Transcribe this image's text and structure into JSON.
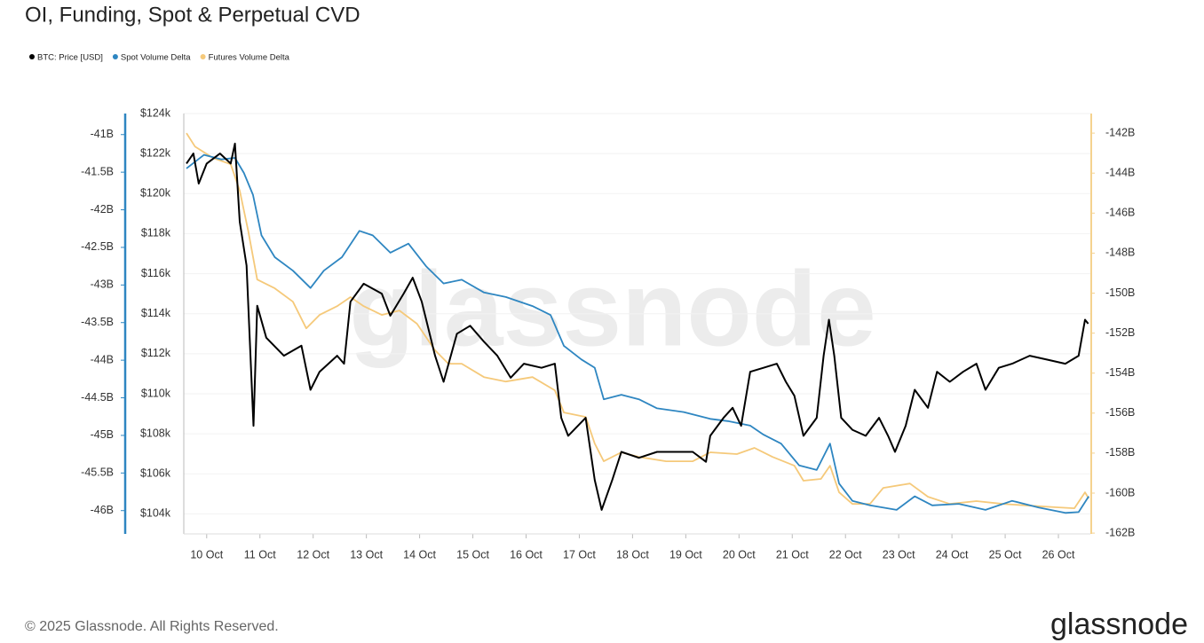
{
  "chart_data": {
    "type": "line",
    "title": "OI, Funding, Spot & Perpetual CVD",
    "watermark": "glassnode",
    "footer": "© 2025 Glassnode. All Rights Reserved.",
    "logo": "glassnode",
    "grid": true,
    "xlim": [
      9.57,
      26.6
    ],
    "xticks": [
      {
        "value": 10,
        "label": "10 Oct"
      },
      {
        "value": 11,
        "label": "11 Oct"
      },
      {
        "value": 12,
        "label": "12 Oct"
      },
      {
        "value": 13,
        "label": "13 Oct"
      },
      {
        "value": 14,
        "label": "14 Oct"
      },
      {
        "value": 15,
        "label": "15 Oct"
      },
      {
        "value": 16,
        "label": "16 Oct"
      },
      {
        "value": 17,
        "label": "17 Oct"
      },
      {
        "value": 18,
        "label": "18 Oct"
      },
      {
        "value": 19,
        "label": "19 Oct"
      },
      {
        "value": 20,
        "label": "20 Oct"
      },
      {
        "value": 21,
        "label": "21 Oct"
      },
      {
        "value": 22,
        "label": "22 Oct"
      },
      {
        "value": 23,
        "label": "23 Oct"
      },
      {
        "value": 24,
        "label": "24 Oct"
      },
      {
        "value": 25,
        "label": "25 Oct"
      },
      {
        "value": 26,
        "label": "26 Oct"
      }
    ],
    "ylim": [
      103000,
      124000
    ],
    "yticks": [
      {
        "value": 104000,
        "label": "$104k"
      },
      {
        "value": 106000,
        "label": "$106k"
      },
      {
        "value": 108000,
        "label": "$108k"
      },
      {
        "value": 110000,
        "label": "$110k"
      },
      {
        "value": 112000,
        "label": "$112k"
      },
      {
        "value": 114000,
        "label": "$114k"
      },
      {
        "value": 116000,
        "label": "$116k"
      },
      {
        "value": 118000,
        "label": "$118k"
      },
      {
        "value": 120000,
        "label": "$120k"
      },
      {
        "value": 122000,
        "label": "$122k"
      },
      {
        "value": 124000,
        "label": "$124k"
      }
    ],
    "y2lim": [
      -162.04,
      -141.02
    ],
    "y2ticks": [
      {
        "value": -142,
        "label": "-142B"
      },
      {
        "value": -144,
        "label": "-144B"
      },
      {
        "value": -146,
        "label": "-146B"
      },
      {
        "value": -148,
        "label": "-148B"
      },
      {
        "value": -150,
        "label": "-150B"
      },
      {
        "value": -152,
        "label": "-152B"
      },
      {
        "value": -154,
        "label": "-154B"
      },
      {
        "value": -156,
        "label": "-156B"
      },
      {
        "value": -158,
        "label": "-158B"
      },
      {
        "value": -160,
        "label": "-160B"
      },
      {
        "value": -162,
        "label": "-162B"
      }
    ],
    "y3lim": [
      -46.31,
      -40.72
    ],
    "y3ticks": [
      {
        "value": -41,
        "label": "-41B"
      },
      {
        "value": -41.5,
        "label": "-41.5B"
      },
      {
        "value": -42,
        "label": "-42B"
      },
      {
        "value": -42.5,
        "label": "-42.5B"
      },
      {
        "value": -43,
        "label": "-43B"
      },
      {
        "value": -43.5,
        "label": "-43.5B"
      },
      {
        "value": -44,
        "label": "-44B"
      },
      {
        "value": -44.5,
        "label": "-44.5B"
      },
      {
        "value": -45,
        "label": "-45B"
      },
      {
        "value": -45.5,
        "label": "-45.5B"
      },
      {
        "value": -46,
        "label": "-46B"
      }
    ],
    "y2color": "#f5d28f",
    "y3color": "#2e86c1",
    "series": [
      {
        "name": "BTC: Price [USD]",
        "color": "#000000",
        "axis": "y",
        "x": [
          9.62,
          9.75,
          9.85,
          10.0,
          10.25,
          10.45,
          10.53,
          10.62,
          10.75,
          10.88,
          10.95,
          11.12,
          11.45,
          11.78,
          11.95,
          12.12,
          12.45,
          12.58,
          12.7,
          12.95,
          13.29,
          13.45,
          13.7,
          13.87,
          14.04,
          14.29,
          14.45,
          14.7,
          14.95,
          15.21,
          15.46,
          15.71,
          15.96,
          16.29,
          16.54,
          16.66,
          16.79,
          17.12,
          17.29,
          17.42,
          17.62,
          17.79,
          18.12,
          18.46,
          18.79,
          19.13,
          19.38,
          19.46,
          19.71,
          19.88,
          20.04,
          20.21,
          20.46,
          20.71,
          20.88,
          21.04,
          21.21,
          21.46,
          21.59,
          21.69,
          21.79,
          21.92,
          22.13,
          22.38,
          22.63,
          22.8,
          22.93,
          23.13,
          23.3,
          23.55,
          23.72,
          23.96,
          24.21,
          24.46,
          24.63,
          24.88,
          25.13,
          25.46,
          25.8,
          26.13,
          26.38,
          26.5,
          26.56
        ],
        "values": [
          121500,
          122000,
          120500,
          121500,
          122000,
          121500,
          122500,
          118600,
          116400,
          108400,
          114400,
          112800,
          111900,
          112400,
          110200,
          111100,
          111900,
          111500,
          114600,
          115500,
          115000,
          113900,
          115000,
          115800,
          114600,
          111900,
          110600,
          113000,
          113400,
          112600,
          111900,
          110800,
          111500,
          111300,
          111500,
          108800,
          107900,
          108800,
          105700,
          104200,
          105700,
          107100,
          106800,
          107100,
          107100,
          107100,
          106600,
          107900,
          108800,
          109300,
          108400,
          111100,
          111300,
          111500,
          110600,
          109900,
          107900,
          108800,
          111900,
          113700,
          111900,
          108800,
          108200,
          107900,
          108800,
          107900,
          107100,
          108400,
          110200,
          109300,
          111100,
          110600,
          111100,
          111500,
          110200,
          111300,
          111500,
          111900,
          111700,
          111500,
          111900,
          113700,
          113500
        ]
      },
      {
        "name": "Spot Volume Delta",
        "color": "#2e86c1",
        "axis": "y3",
        "x": [
          9.62,
          9.95,
          10.28,
          10.53,
          10.7,
          10.87,
          11.03,
          11.28,
          11.62,
          11.95,
          12.2,
          12.54,
          12.87,
          13.12,
          13.45,
          13.79,
          14.12,
          14.45,
          14.79,
          15.21,
          15.62,
          16.12,
          16.46,
          16.71,
          17.04,
          17.29,
          17.46,
          17.79,
          18.12,
          18.46,
          18.96,
          19.46,
          19.79,
          20.21,
          20.46,
          20.79,
          21.13,
          21.46,
          21.71,
          21.88,
          22.13,
          22.46,
          22.96,
          23.3,
          23.63,
          24.13,
          24.63,
          25.13,
          25.63,
          26.13,
          26.38,
          26.57
        ],
        "values": [
          -41.45,
          -41.27,
          -41.33,
          -41.31,
          -41.51,
          -41.8,
          -42.34,
          -42.63,
          -42.81,
          -43.04,
          -42.81,
          -42.63,
          -42.28,
          -42.34,
          -42.57,
          -42.45,
          -42.75,
          -42.98,
          -42.93,
          -43.1,
          -43.16,
          -43.28,
          -43.4,
          -43.81,
          -43.99,
          -44.1,
          -44.52,
          -44.46,
          -44.52,
          -44.64,
          -44.69,
          -44.78,
          -44.81,
          -44.87,
          -44.99,
          -45.11,
          -45.4,
          -45.46,
          -45.11,
          -45.64,
          -45.87,
          -45.93,
          -45.99,
          -45.81,
          -45.93,
          -45.91,
          -45.99,
          -45.87,
          -45.96,
          -46.03,
          -46.02,
          -45.81
        ]
      },
      {
        "name": "Futures Volume Delta",
        "color": "#f5c97a",
        "axis": "y2",
        "x": [
          9.62,
          9.78,
          10.12,
          10.45,
          10.62,
          10.78,
          10.95,
          11.28,
          11.62,
          11.87,
          12.12,
          12.45,
          12.7,
          12.95,
          13.29,
          13.62,
          13.95,
          14.29,
          14.54,
          14.79,
          15.21,
          15.62,
          16.12,
          16.54,
          16.71,
          17.12,
          17.29,
          17.46,
          17.79,
          18.12,
          18.63,
          19.13,
          19.46,
          19.96,
          20.29,
          20.63,
          21.04,
          21.21,
          21.54,
          21.71,
          21.88,
          22.13,
          22.46,
          22.71,
          23.21,
          23.55,
          23.96,
          24.46,
          24.96,
          25.47,
          25.97,
          26.3,
          26.5,
          26.57
        ],
        "values": [
          -142.0,
          -142.67,
          -143.24,
          -143.55,
          -144.88,
          -146.88,
          -149.32,
          -149.76,
          -150.43,
          -151.76,
          -151.09,
          -150.65,
          -150.2,
          -150.65,
          -151.09,
          -150.87,
          -151.53,
          -152.86,
          -153.53,
          -153.53,
          -154.2,
          -154.42,
          -154.2,
          -154.86,
          -155.97,
          -156.19,
          -157.52,
          -158.41,
          -157.96,
          -158.19,
          -158.41,
          -158.41,
          -157.96,
          -158.05,
          -157.74,
          -158.19,
          -158.63,
          -159.38,
          -159.29,
          -158.63,
          -159.96,
          -160.54,
          -160.54,
          -159.74,
          -159.52,
          -160.18,
          -160.54,
          -160.4,
          -160.54,
          -160.63,
          -160.71,
          -160.76,
          -159.96,
          -160.27
        ]
      }
    ]
  }
}
